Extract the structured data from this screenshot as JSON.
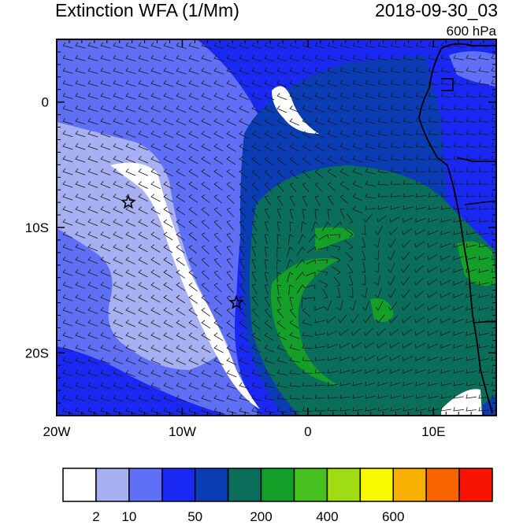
{
  "header": {
    "title": "Extinction WFA (1/Mm)",
    "datetime": "2018-09-30_03",
    "level": "600 hPa"
  },
  "map": {
    "lon_range": [
      -20,
      15
    ],
    "lat_range": [
      -25,
      5
    ],
    "x_ticks": [
      {
        "lon": -20,
        "label": "20W"
      },
      {
        "lon": -10,
        "label": "10W"
      },
      {
        "lon": 0,
        "label": "0"
      },
      {
        "lon": 10,
        "label": "10E"
      }
    ],
    "y_ticks": [
      {
        "lat": 0,
        "label": "0"
      },
      {
        "lat": -10,
        "label": "10S"
      },
      {
        "lat": -20,
        "label": "20S"
      }
    ],
    "markers": [
      {
        "name": "star-marker-1",
        "lon": -14.3,
        "lat": -8.0
      },
      {
        "name": "star-marker-2",
        "lon": -5.7,
        "lat": -16.0
      }
    ],
    "vortex_center": {
      "lon": 0.5,
      "lat": -16.0
    }
  },
  "colorbar": {
    "colors": [
      "#ffffff",
      "#a8b0f4",
      "#6070f6",
      "#1a28f4",
      "#0a3cb4",
      "#0a6e5a",
      "#14a028",
      "#46c01e",
      "#a0dc14",
      "#f8f800",
      "#f8b000",
      "#f86400",
      "#f81400"
    ],
    "labels": [
      {
        "after_box": 1,
        "text": "2"
      },
      {
        "after_box": 2,
        "text": "10"
      },
      {
        "after_box": 4,
        "text": "50"
      },
      {
        "after_box": 6,
        "text": "200"
      },
      {
        "after_box": 8,
        "text": "400"
      },
      {
        "after_box": 10,
        "text": "600"
      }
    ]
  }
}
